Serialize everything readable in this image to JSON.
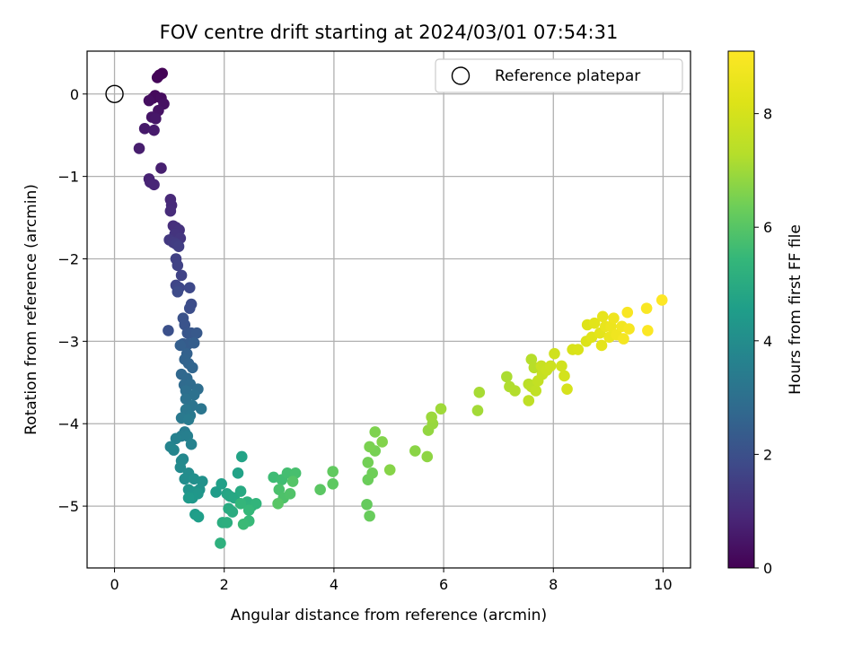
{
  "chart_data": {
    "type": "scatter",
    "title": "FOV centre drift starting at 2024/03/01 07:54:31",
    "xlabel": "Angular distance from reference (arcmin)",
    "ylabel": "Rotation from reference (arcmin)",
    "xlim": [
      -0.5,
      10.5
    ],
    "ylim": [
      -5.75,
      0.52
    ],
    "xticks": [
      0,
      2,
      4,
      6,
      8,
      10
    ],
    "yticks": [
      0,
      -1,
      -2,
      -3,
      -4,
      -5
    ],
    "grid": true,
    "legend": {
      "position": "upper right",
      "entries": [
        "Reference platepar"
      ]
    },
    "reference_point": {
      "x": 0,
      "y": 0,
      "label": "Reference platepar"
    },
    "colorbar": {
      "label": "Hours from first FF file",
      "colormap": "viridis",
      "range": [
        0,
        9.1
      ],
      "ticks": [
        0,
        2,
        4,
        6,
        8
      ]
    },
    "series": [
      {
        "points": [
          [
            0.82,
            0.23
          ],
          [
            0.87,
            0.25
          ],
          [
            0.78,
            0.2
          ],
          [
            0.7,
            -0.05
          ],
          [
            0.74,
            -0.02
          ],
          [
            0.85,
            -0.05
          ],
          [
            0.63,
            -0.08
          ],
          [
            0.9,
            -0.12
          ],
          [
            0.8,
            -0.2
          ],
          [
            0.68,
            -0.28
          ],
          [
            0.75,
            -0.3
          ],
          [
            0.55,
            -0.42
          ],
          [
            0.72,
            -0.44
          ],
          [
            0.45,
            -0.66
          ],
          [
            0.85,
            -0.9
          ],
          [
            0.63,
            -1.03
          ],
          [
            0.65,
            -1.07
          ],
          [
            0.72,
            -1.1
          ],
          [
            1.02,
            -1.28
          ],
          [
            1.04,
            -1.35
          ],
          [
            1.02,
            -1.42
          ],
          [
            1.07,
            -1.6
          ],
          [
            1.12,
            -1.62
          ],
          [
            1.18,
            -1.65
          ],
          [
            1.1,
            -1.7
          ],
          [
            1.2,
            -1.75
          ],
          [
            1.0,
            -1.77
          ],
          [
            1.07,
            -1.8
          ],
          [
            1.12,
            -1.82
          ],
          [
            1.17,
            -1.85
          ],
          [
            1.12,
            -2.0
          ],
          [
            1.15,
            -2.08
          ],
          [
            1.22,
            -2.2
          ],
          [
            1.12,
            -2.32
          ],
          [
            1.18,
            -2.35
          ],
          [
            1.37,
            -2.35
          ],
          [
            1.15,
            -2.4
          ],
          [
            1.4,
            -2.55
          ],
          [
            1.37,
            -2.6
          ],
          [
            0.98,
            -2.87
          ],
          [
            1.25,
            -2.72
          ],
          [
            1.28,
            -2.8
          ],
          [
            1.33,
            -2.9
          ],
          [
            1.4,
            -2.9
          ],
          [
            1.5,
            -2.9
          ],
          [
            1.25,
            -3.03
          ],
          [
            1.35,
            -3.03
          ],
          [
            1.45,
            -3.02
          ],
          [
            1.2,
            -3.05
          ],
          [
            1.32,
            -3.15
          ],
          [
            1.28,
            -3.22
          ],
          [
            1.35,
            -3.27
          ],
          [
            1.42,
            -3.32
          ],
          [
            1.22,
            -3.4
          ],
          [
            1.32,
            -3.45
          ],
          [
            1.27,
            -3.53
          ],
          [
            1.38,
            -3.52
          ],
          [
            1.52,
            -3.58
          ],
          [
            1.3,
            -3.6
          ],
          [
            1.45,
            -3.65
          ],
          [
            1.3,
            -3.7
          ],
          [
            1.42,
            -3.78
          ],
          [
            1.58,
            -3.82
          ],
          [
            1.3,
            -3.83
          ],
          [
            1.38,
            -3.9
          ],
          [
            1.22,
            -3.93
          ],
          [
            1.35,
            -3.95
          ],
          [
            1.28,
            -4.1
          ],
          [
            1.22,
            -4.15
          ],
          [
            1.33,
            -4.15
          ],
          [
            1.12,
            -4.18
          ],
          [
            1.4,
            -4.25
          ],
          [
            1.02,
            -4.28
          ],
          [
            1.08,
            -4.32
          ],
          [
            1.25,
            -4.43
          ],
          [
            1.22,
            -4.45
          ],
          [
            1.2,
            -4.53
          ],
          [
            1.35,
            -4.6
          ],
          [
            1.28,
            -4.67
          ],
          [
            1.45,
            -4.67
          ],
          [
            1.6,
            -4.7
          ],
          [
            1.55,
            -4.8
          ],
          [
            1.35,
            -4.8
          ],
          [
            1.45,
            -4.83
          ],
          [
            1.52,
            -4.85
          ],
          [
            1.42,
            -4.9
          ],
          [
            1.35,
            -4.9
          ],
          [
            1.85,
            -4.83
          ],
          [
            1.47,
            -5.1
          ],
          [
            1.53,
            -5.13
          ],
          [
            1.95,
            -4.73
          ],
          [
            2.25,
            -4.6
          ],
          [
            2.32,
            -4.4
          ],
          [
            2.05,
            -4.85
          ],
          [
            2.1,
            -4.88
          ],
          [
            2.18,
            -4.9
          ],
          [
            2.3,
            -4.82
          ],
          [
            2.08,
            -5.03
          ],
          [
            2.15,
            -5.07
          ],
          [
            1.97,
            -5.2
          ],
          [
            2.05,
            -5.2
          ],
          [
            1.93,
            -5.45
          ],
          [
            2.42,
            -4.95
          ],
          [
            2.5,
            -5.0
          ],
          [
            2.58,
            -4.97
          ],
          [
            2.3,
            -4.97
          ],
          [
            2.45,
            -5.05
          ],
          [
            2.45,
            -5.18
          ],
          [
            2.35,
            -5.22
          ],
          [
            2.9,
            -4.65
          ],
          [
            3.05,
            -4.68
          ],
          [
            3.15,
            -4.6
          ],
          [
            3.3,
            -4.6
          ],
          [
            3.0,
            -4.8
          ],
          [
            3.08,
            -4.9
          ],
          [
            3.2,
            -4.85
          ],
          [
            3.25,
            -4.7
          ],
          [
            2.98,
            -4.97
          ],
          [
            3.75,
            -4.8
          ],
          [
            3.98,
            -4.73
          ],
          [
            3.98,
            -4.58
          ],
          [
            4.6,
            -4.98
          ],
          [
            4.65,
            -5.12
          ],
          [
            4.62,
            -4.68
          ],
          [
            4.7,
            -4.6
          ],
          [
            4.62,
            -4.47
          ],
          [
            4.75,
            -4.33
          ],
          [
            4.65,
            -4.28
          ],
          [
            4.75,
            -4.1
          ],
          [
            4.88,
            -4.22
          ],
          [
            5.02,
            -4.56
          ],
          [
            5.48,
            -4.33
          ],
          [
            5.7,
            -4.4
          ],
          [
            5.72,
            -4.08
          ],
          [
            5.8,
            -4.0
          ],
          [
            5.78,
            -3.92
          ],
          [
            5.95,
            -3.82
          ],
          [
            6.62,
            -3.84
          ],
          [
            6.65,
            -3.62
          ],
          [
            7.15,
            -3.43
          ],
          [
            7.2,
            -3.55
          ],
          [
            7.3,
            -3.6
          ],
          [
            7.6,
            -3.22
          ],
          [
            7.65,
            -3.32
          ],
          [
            7.55,
            -3.52
          ],
          [
            7.6,
            -3.55
          ],
          [
            7.55,
            -3.72
          ],
          [
            7.68,
            -3.6
          ],
          [
            7.72,
            -3.48
          ],
          [
            7.8,
            -3.4
          ],
          [
            7.78,
            -3.3
          ],
          [
            7.88,
            -3.35
          ],
          [
            7.95,
            -3.3
          ],
          [
            8.02,
            -3.15
          ],
          [
            8.15,
            -3.3
          ],
          [
            8.2,
            -3.42
          ],
          [
            8.25,
            -3.58
          ],
          [
            8.35,
            -3.1
          ],
          [
            8.45,
            -3.1
          ],
          [
            8.6,
            -3.0
          ],
          [
            8.62,
            -2.8
          ],
          [
            8.7,
            -2.95
          ],
          [
            8.75,
            -2.78
          ],
          [
            8.85,
            -2.9
          ],
          [
            8.88,
            -3.05
          ],
          [
            8.9,
            -2.7
          ],
          [
            8.95,
            -2.82
          ],
          [
            9.02,
            -2.95
          ],
          [
            9.05,
            -2.82
          ],
          [
            9.1,
            -2.72
          ],
          [
            9.15,
            -2.92
          ],
          [
            9.25,
            -2.82
          ],
          [
            9.28,
            -2.97
          ],
          [
            9.38,
            -2.85
          ],
          [
            9.35,
            -2.65
          ],
          [
            9.7,
            -2.6
          ],
          [
            9.72,
            -2.87
          ],
          [
            9.98,
            -2.5
          ]
        ],
        "colors": "colormap by hours from first FF file"
      }
    ]
  }
}
